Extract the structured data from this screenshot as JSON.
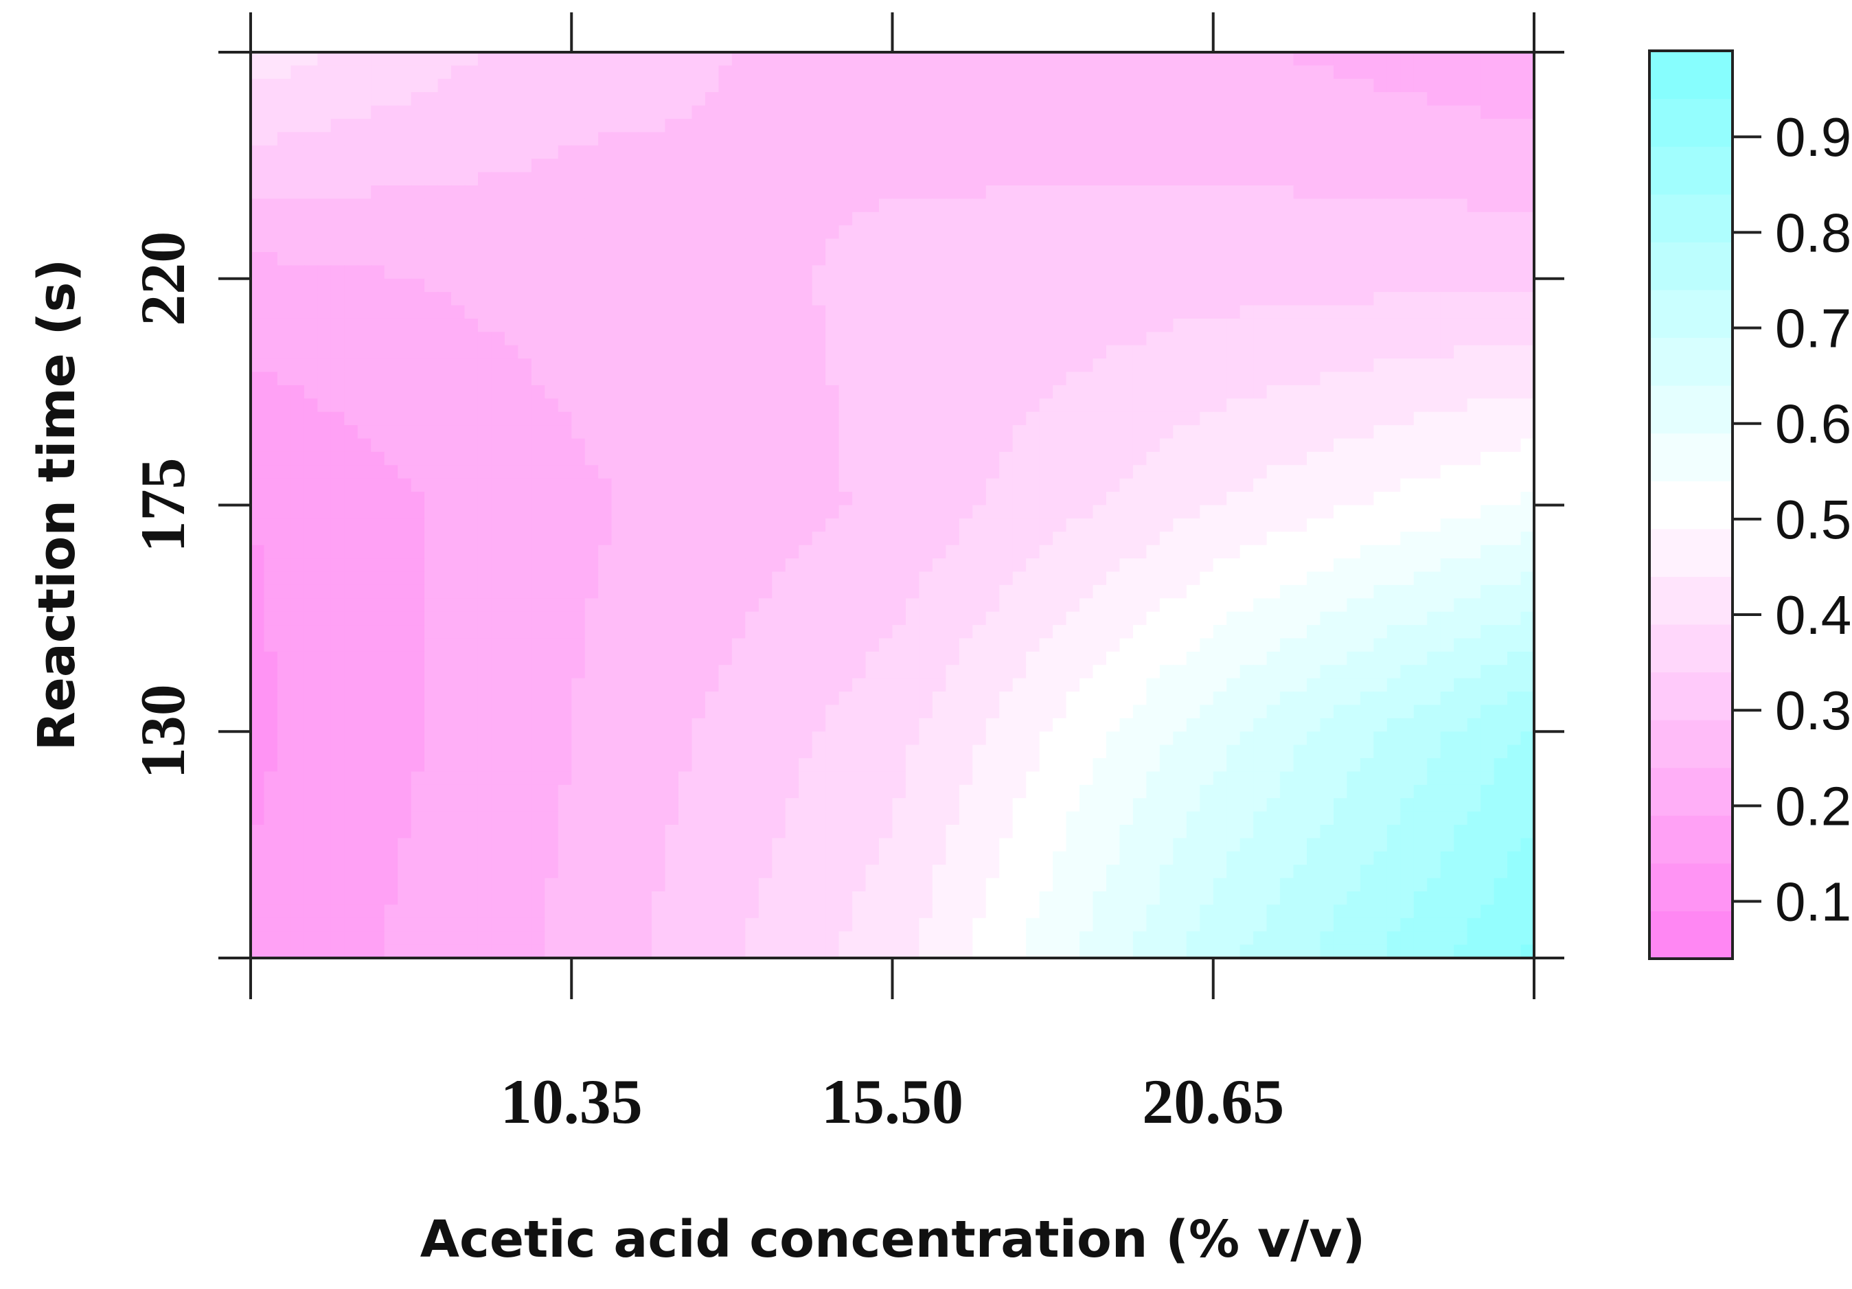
{
  "chart_data": {
    "type": "heatmap",
    "xlabel": "Acetic acid concentration (% v/v)",
    "ylabel": "Reaction time (s)",
    "x_ticks": [
      "10.35",
      "15.50",
      "20.65"
    ],
    "y_ticks": [
      "130",
      "175",
      "220"
    ],
    "x_tick_values": [
      10.35,
      15.5,
      20.65
    ],
    "y_tick_values": [
      130,
      175,
      220
    ],
    "xlim": [
      5.2,
      25.8
    ],
    "ylim": [
      85,
      265
    ],
    "colorbar": {
      "ticks": [
        "0.1",
        "0.2",
        "0.3",
        "0.4",
        "0.5",
        "0.6",
        "0.7",
        "0.8",
        "0.9"
      ],
      "tick_values": [
        0.1,
        0.2,
        0.3,
        0.4,
        0.5,
        0.6,
        0.7,
        0.8,
        0.9
      ],
      "range": [
        0.04,
        0.99
      ],
      "low_color": "#ff80f2",
      "mid_color": "#ffffff",
      "high_color": "#80fefe"
    },
    "grid": {
      "x": [
        5.2,
        10.35,
        15.5,
        20.65,
        25.8
      ],
      "y": [
        85,
        130,
        175,
        220,
        265
      ],
      "z": [
        [
          0.15,
          0.25,
          0.42,
          0.72,
          0.95
        ],
        [
          0.13,
          0.24,
          0.37,
          0.62,
          0.85
        ],
        [
          0.14,
          0.23,
          0.3,
          0.44,
          0.55
        ],
        [
          0.22,
          0.26,
          0.3,
          0.32,
          0.33
        ],
        [
          0.42,
          0.31,
          0.27,
          0.25,
          0.2
        ]
      ]
    }
  }
}
